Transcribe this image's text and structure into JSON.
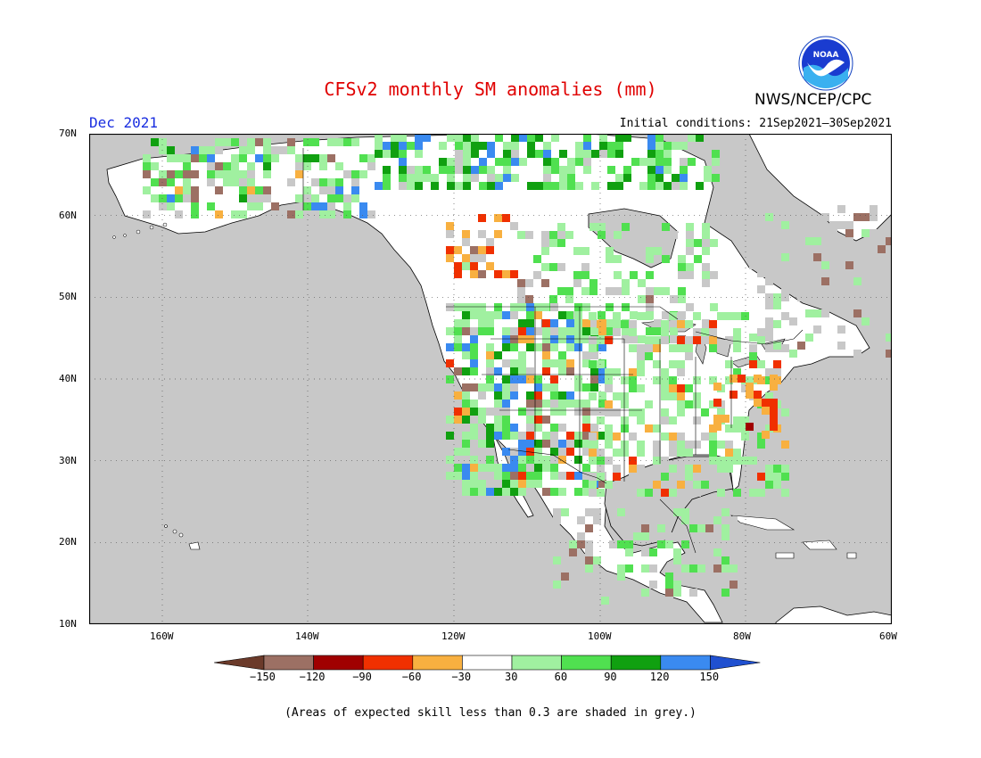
{
  "title": "CFSv2 monthly SM anomalies (mm)",
  "agency": "NWS/NCEP/CPC",
  "logo_text": "NOAA",
  "valid_month": "Dec 2021",
  "initial_conditions": "Initial conditions: 21Sep2021–30Sep2021",
  "footnote": "(Areas of expected skill less than 0.3 are shaded in grey.)",
  "map": {
    "lat_labels": [
      "70N",
      "60N",
      "50N",
      "40N",
      "30N",
      "20N",
      "10N"
    ],
    "lon_labels": [
      "160W",
      "140W",
      "120W",
      "100W",
      "80W",
      "60W"
    ],
    "colors": {
      "ocean": "#c8c8c8",
      "land": "#ffffff",
      "low_skill_grey": "#c8c8c8"
    }
  },
  "colorbar": {
    "labels": [
      "−150",
      "−120",
      "−90",
      "−60",
      "−30",
      "30",
      "60",
      "90",
      "120",
      "150"
    ],
    "colors": [
      "#6b3a2a",
      "#9c7064",
      "#a00000",
      "#f03000",
      "#f8b040",
      "#ffffff",
      "#a0f0a0",
      "#50e050",
      "#10a010",
      "#3a8af0",
      "#2050d0"
    ]
  }
}
